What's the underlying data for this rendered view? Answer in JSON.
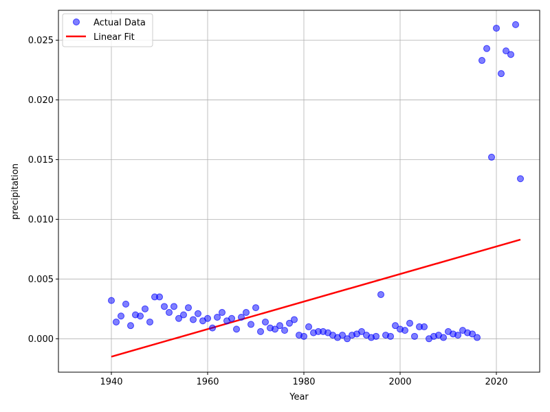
{
  "chart_data": {
    "type": "scatter",
    "title": "",
    "xlabel": "Year",
    "ylabel": "precipitation",
    "xlim": [
      1929,
      2029
    ],
    "ylim": [
      -0.0028,
      0.0275
    ],
    "xticks": [
      1940,
      1960,
      1980,
      2000,
      2020
    ],
    "xtick_labels": [
      "1940",
      "1960",
      "1980",
      "2000",
      "2020"
    ],
    "yticks": [
      0.0,
      0.005,
      0.01,
      0.015,
      0.02,
      0.025
    ],
    "ytick_labels": [
      "0.000",
      "0.005",
      "0.010",
      "0.015",
      "0.020",
      "0.025"
    ],
    "grid": true,
    "legend_position": "top-left",
    "series": [
      {
        "name": "Actual Data",
        "kind": "scatter",
        "color": "#0000ff",
        "x": [
          1940,
          1941,
          1942,
          1943,
          1944,
          1945,
          1946,
          1947,
          1948,
          1949,
          1950,
          1951,
          1952,
          1953,
          1954,
          1955,
          1956,
          1957,
          1958,
          1959,
          1960,
          1961,
          1962,
          1963,
          1964,
          1965,
          1966,
          1967,
          1968,
          1969,
          1970,
          1971,
          1972,
          1973,
          1974,
          1975,
          1976,
          1977,
          1978,
          1979,
          1980,
          1981,
          1982,
          1983,
          1984,
          1985,
          1986,
          1987,
          1988,
          1989,
          1990,
          1991,
          1992,
          1993,
          1994,
          1995,
          1996,
          1997,
          1998,
          1999,
          2000,
          2001,
          2002,
          2003,
          2004,
          2005,
          2006,
          2007,
          2008,
          2009,
          2010,
          2011,
          2012,
          2013,
          2014,
          2015,
          2016,
          2017,
          2018,
          2019,
          2020,
          2021,
          2022,
          2023,
          2024,
          2025
        ],
        "y": [
          0.0032,
          0.0014,
          0.0019,
          0.0029,
          0.0011,
          0.002,
          0.0019,
          0.0025,
          0.0014,
          0.0035,
          0.0035,
          0.0027,
          0.0022,
          0.0027,
          0.0017,
          0.002,
          0.0026,
          0.0016,
          0.0021,
          0.0015,
          0.0017,
          0.0009,
          0.0018,
          0.0022,
          0.0015,
          0.0017,
          0.0008,
          0.0018,
          0.0022,
          0.0012,
          0.0026,
          0.0006,
          0.0014,
          0.0009,
          0.0008,
          0.0011,
          0.0007,
          0.0013,
          0.0016,
          0.0003,
          0.0002,
          0.001,
          0.0005,
          0.0006,
          0.0006,
          0.0005,
          0.0003,
          0.0001,
          0.0003,
          0.0,
          0.0003,
          0.0004,
          0.0006,
          0.0003,
          0.0001,
          0.0002,
          0.0037,
          0.0003,
          0.0002,
          0.0011,
          0.0008,
          0.0007,
          0.0013,
          0.0002,
          0.001,
          0.001,
          0.0,
          0.0002,
          0.0003,
          0.0001,
          0.0006,
          0.0004,
          0.0003,
          0.0007,
          0.0005,
          0.0004,
          0.0001,
          0.0233,
          0.0243,
          0.0152,
          0.026,
          0.0222,
          0.0241,
          0.0238,
          0.0263,
          0.0134
        ]
      },
      {
        "name": "Linear Fit",
        "kind": "line",
        "color": "#ff0000",
        "x": [
          1940,
          2025
        ],
        "y": [
          -0.0015,
          0.0083
        ]
      }
    ]
  }
}
